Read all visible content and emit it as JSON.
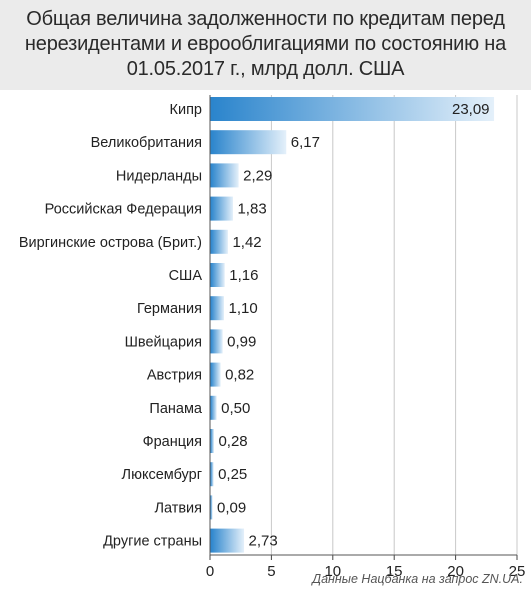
{
  "title_lines": [
    "Общая величина задолженности по кредитам перед",
    "нерезидентами и еврооблигациями по состоянию на",
    "01.05.2017 г., млрд долл. США"
  ],
  "source": "Данные Нацбанка на запрос ZN.UA.",
  "colors": {
    "header_bg": "#ebebeb",
    "bar_dark": "#2a84cc",
    "bar_light": "#e4f0fa",
    "grid": "#c8c8c8"
  },
  "chart_data": {
    "type": "bar",
    "orientation": "horizontal",
    "title": "Общая величина задолженности по кредитам перед нерезидентами и еврооблигациями по состоянию на 01.05.2017 г., млрд долл. США",
    "categories": [
      "Кипр",
      "Великобритания",
      "Нидерланды",
      "Российская Федерация",
      "Виргинские острова (Брит.)",
      "США",
      "Германия",
      "Швейцария",
      "Австрия",
      "Панама",
      "Франция",
      "Люксембург",
      "Латвия",
      "Другие страны"
    ],
    "values": [
      23.09,
      6.17,
      2.29,
      1.83,
      1.42,
      1.16,
      1.1,
      0.99,
      0.82,
      0.5,
      0.28,
      0.25,
      0.09,
      2.73
    ],
    "value_labels": [
      "23,09",
      "6,17",
      "2,29",
      "1,83",
      "1,42",
      "1,16",
      "1,10",
      "0,99",
      "0,82",
      "0,50",
      "0,28",
      "0,25",
      "0,09",
      "2,73"
    ],
    "xlim": [
      0,
      25
    ],
    "x_ticks": [
      0,
      5,
      10,
      15,
      20,
      25
    ],
    "xlabel": "",
    "ylabel": "",
    "grid": true,
    "legend": "none"
  }
}
